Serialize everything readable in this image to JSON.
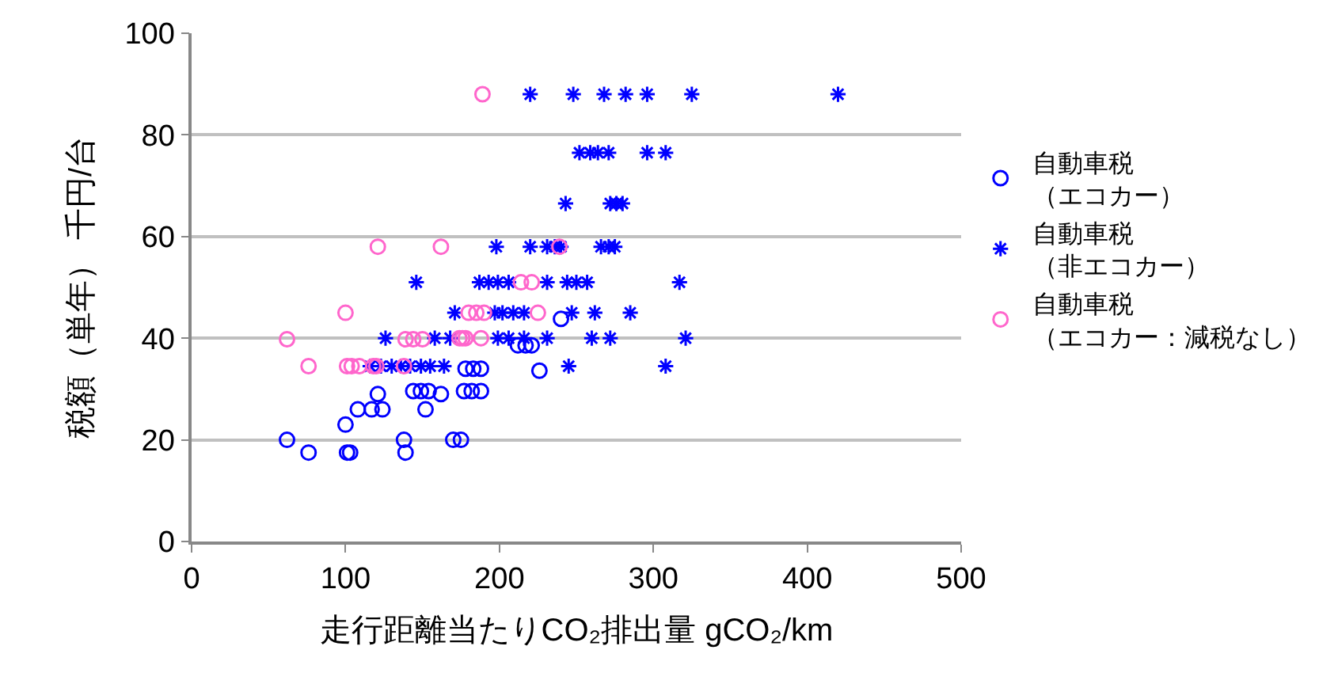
{
  "chart_data": {
    "type": "scatter",
    "xlabel": "走行距離当たりCO₂排出量 gCO₂/km",
    "ylabel": "税額（単年） 千円/台",
    "xlim": [
      0,
      500
    ],
    "xticks": [
      0,
      100,
      200,
      300,
      400,
      500
    ],
    "ylim": [
      0,
      100
    ],
    "yticks": [
      0,
      20,
      40,
      60,
      80,
      100
    ],
    "grid": "y",
    "legend": "right",
    "series": [
      {
        "name": "自動車税（エコカー）",
        "color": "#0000ff",
        "marker": "circle",
        "x": [
          62,
          76,
          100,
          101,
          103,
          108,
          117,
          121,
          124,
          138,
          139,
          144,
          149,
          154,
          152,
          162,
          170,
          175,
          178,
          183,
          188,
          177,
          182,
          188,
          212,
          217,
          221,
          226,
          240
        ],
        "values": [
          20,
          17.5,
          23,
          17.5,
          17.5,
          26,
          26,
          29,
          26,
          20,
          17.5,
          29.6,
          29.6,
          29.6,
          26,
          29,
          20,
          20,
          34,
          34,
          34,
          29.6,
          29.6,
          29.6,
          38.6,
          38.6,
          38.6,
          33.6,
          43.8
        ]
      },
      {
        "name": "自動車税（非エコカー）",
        "color": "#0000ff",
        "marker": "cross",
        "x": [
          220,
          248,
          268,
          282,
          296,
          325,
          420,
          252,
          259,
          264,
          271,
          296,
          308,
          243,
          272,
          276,
          280,
          198,
          220,
          231,
          236,
          240,
          266,
          271,
          275,
          146,
          187,
          193,
          199,
          206,
          231,
          244,
          250,
          257,
          317,
          171,
          197,
          202,
          209,
          216,
          247,
          262,
          285,
          126,
          158,
          168,
          199,
          206,
          216,
          231,
          260,
          272,
          321,
          116,
          123,
          130,
          136,
          142,
          149,
          155,
          164,
          245,
          308
        ],
        "values": [
          88,
          88,
          88,
          88,
          88,
          88,
          88,
          76.5,
          76.5,
          76.5,
          76.5,
          76.5,
          76.5,
          66.5,
          66.5,
          66.5,
          66.5,
          58,
          58,
          58,
          58,
          58,
          58,
          58,
          58,
          51,
          51,
          51,
          51,
          51,
          51,
          51,
          51,
          51,
          51,
          45,
          45,
          45,
          45,
          45,
          45,
          45,
          45,
          40,
          40,
          40,
          40,
          40,
          40,
          40,
          40,
          40,
          40,
          34.5,
          34.5,
          34.5,
          34.5,
          34.5,
          34.5,
          34.5,
          34.5,
          34.5,
          34.5
        ]
      },
      {
        "name": "自動車税（エコカー：減税なし）",
        "color": "#ff66cc",
        "marker": "circle",
        "x": [
          62,
          76,
          100,
          101,
          104,
          109,
          118,
          120,
          121,
          162,
          139,
          144,
          150,
          138,
          174,
          178,
          180,
          185,
          190,
          189,
          239,
          214,
          221,
          225,
          176,
          188
        ],
        "values": [
          39.8,
          34.5,
          45,
          34.5,
          34.5,
          34.5,
          34.5,
          34.5,
          58,
          58,
          39.8,
          39.8,
          39.8,
          34.5,
          40,
          40,
          45,
          45,
          45,
          88,
          58,
          51,
          51,
          45,
          40,
          40
        ]
      }
    ]
  }
}
